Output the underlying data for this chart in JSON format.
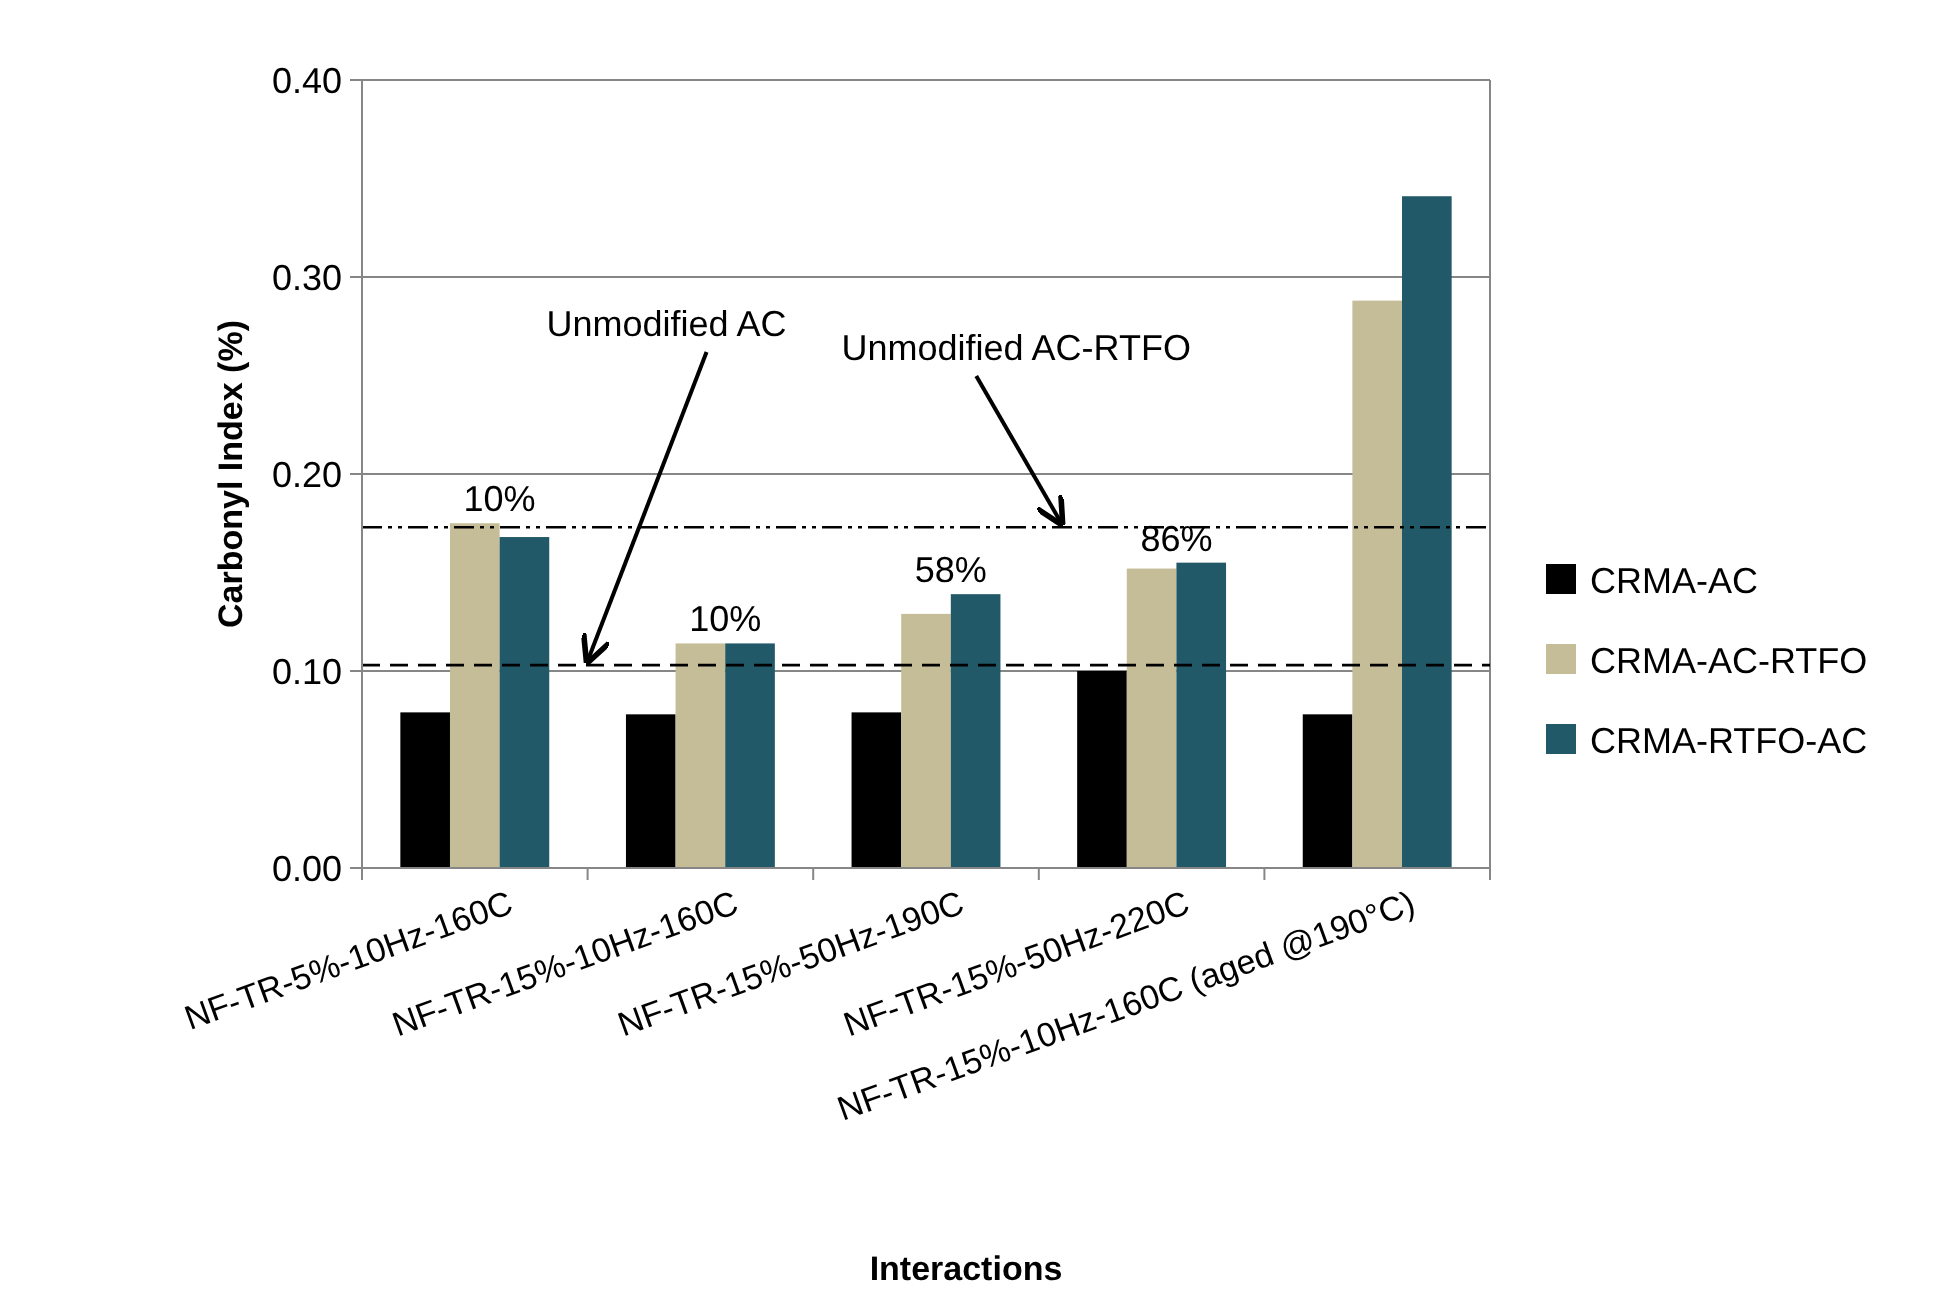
{
  "chart_data": {
    "type": "bar",
    "xlabel": "Interactions",
    "ylabel": "Carbonyl Index (%)",
    "categories": [
      "NF-TR-5%-10Hz-160C",
      "NF-TR-15%-10Hz-160C",
      "NF-TR-15%-50Hz-190C",
      "NF-TR-15%-50Hz-220C",
      "NF-TR-15%-10Hz-160C (aged @190°C)"
    ],
    "series": [
      {
        "name": "CRMA-AC",
        "color": "#000000",
        "values": [
          0.079,
          0.078,
          0.079,
          0.1,
          0.078
        ]
      },
      {
        "name": "CRMA-AC-RTFO",
        "color": "#c4bd97",
        "values": [
          0.175,
          0.114,
          0.129,
          0.152,
          0.288
        ]
      },
      {
        "name": "CRMA-RTFO-AC",
        "color": "#215968",
        "values": [
          0.168,
          0.114,
          0.139,
          0.155,
          0.341
        ]
      }
    ],
    "ylim": [
      0,
      0.4
    ],
    "yticks": [
      {
        "value": 0,
        "label": "0.00"
      },
      {
        "value": 0.1,
        "label": "0.10"
      },
      {
        "value": 0.2,
        "label": "0.20"
      },
      {
        "value": 0.3,
        "label": "0.30"
      },
      {
        "value": 0.4,
        "label": "0.40"
      }
    ],
    "grid": "y",
    "legend": "right",
    "ref_lines": [
      {
        "axis": "y",
        "value": 0.103,
        "label": "Unmodified AC",
        "line_style": "dashed",
        "color": "#000000"
      },
      {
        "axis": "y",
        "value": 0.173,
        "label": "Unmodified AC-RTFO",
        "line_style": "dashdot",
        "color": "#000000"
      }
    ],
    "annotations": [
      {
        "text": "10%",
        "x": "NF-TR-5%-10Hz-160C",
        "y": 0.175
      },
      {
        "text": "10%",
        "x": "NF-TR-15%-10Hz-160C",
        "y": 0.114
      },
      {
        "text": "58%",
        "x": "NF-TR-15%-50Hz-190C",
        "y": 0.139
      },
      {
        "text": "86%",
        "x": "NF-TR-15%-50Hz-220C",
        "y": 0.155
      }
    ]
  }
}
